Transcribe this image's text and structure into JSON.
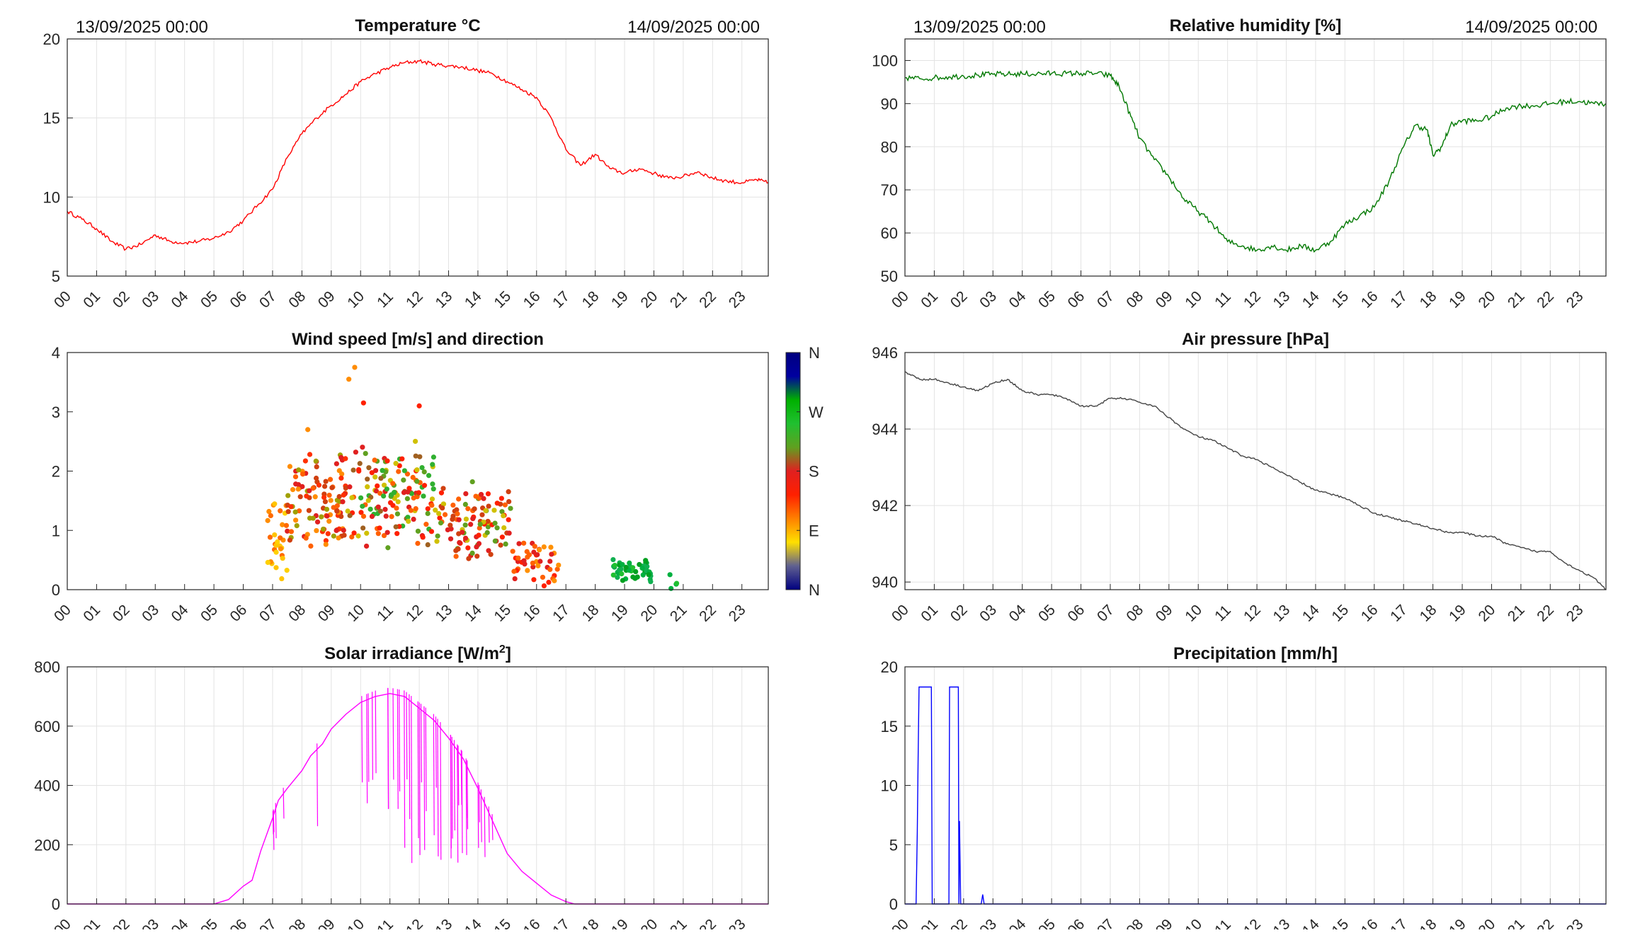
{
  "hour_labels": [
    "00",
    "01",
    "02",
    "03",
    "04",
    "05",
    "06",
    "07",
    "08",
    "09",
    "10",
    "11",
    "12",
    "13",
    "14",
    "15",
    "16",
    "17",
    "18",
    "19",
    "20",
    "21",
    "22",
    "23"
  ],
  "chart_data": [
    {
      "id": "temperature",
      "type": "line",
      "title": "Temperature °C",
      "date_start": "13/09/2025 00:00",
      "date_end": "14/09/2025 00:00",
      "xlim": [
        0,
        23.9
      ],
      "ylim": [
        5,
        20
      ],
      "yticks": [
        "5",
        "10",
        "15",
        "20"
      ],
      "ytick_values": [
        5,
        10,
        15,
        20
      ],
      "grid": true,
      "color": "#ff0000",
      "series": [
        {
          "x": [
            0,
            0.5,
            1,
            1.5,
            2,
            2.5,
            3,
            3.5,
            4,
            4.5,
            5,
            5.5,
            6,
            6.5,
            7,
            7.5,
            8,
            8.5,
            9,
            9.5,
            10,
            10.5,
            11,
            11.5,
            12,
            12.5,
            13,
            13.5,
            14,
            14.5,
            15,
            15.5,
            16,
            16.5,
            17,
            17.5,
            18,
            18.5,
            19,
            19.5,
            20,
            20.5,
            21,
            21.5,
            22,
            22.5,
            23,
            23.5,
            23.9
          ],
          "y": [
            9.1,
            8.6,
            8.0,
            7.2,
            6.7,
            7.0,
            7.6,
            7.2,
            7.1,
            7.2,
            7.4,
            7.8,
            8.5,
            9.5,
            10.5,
            12.5,
            14.0,
            15.0,
            15.8,
            16.5,
            17.3,
            17.8,
            18.2,
            18.5,
            18.6,
            18.4,
            18.3,
            18.2,
            18.0,
            17.8,
            17.3,
            16.8,
            16.3,
            15.0,
            13.0,
            12.0,
            12.7,
            11.8,
            11.5,
            11.8,
            11.5,
            11.2,
            11.3,
            11.6,
            11.2,
            11.0,
            10.9,
            11.1,
            10.9
          ]
        }
      ]
    },
    {
      "id": "humidity",
      "type": "line",
      "title": "Relative humidity [%]",
      "date_start": "13/09/2025 00:00",
      "date_end": "14/09/2025 00:00",
      "xlim": [
        0,
        23.9
      ],
      "ylim": [
        50,
        105
      ],
      "yticks": [
        "50",
        "60",
        "70",
        "80",
        "90",
        "100"
      ],
      "ytick_values": [
        50,
        60,
        70,
        80,
        90,
        100
      ],
      "grid": true,
      "color": "#007800",
      "series": [
        {
          "x": [
            0,
            0.5,
            1,
            1.5,
            2,
            2.5,
            3,
            3.5,
            4,
            4.5,
            5,
            5.5,
            6,
            6.5,
            7,
            7.3,
            7.7,
            8,
            8.5,
            9,
            9.5,
            10,
            10.5,
            11,
            11.5,
            12,
            12.5,
            13,
            13.5,
            14,
            14.5,
            15,
            15.5,
            16,
            16.5,
            17,
            17.4,
            17.8,
            18,
            18.3,
            18.6,
            19,
            19.5,
            20,
            20.5,
            21,
            21.5,
            22,
            22.5,
            23,
            23.5,
            23.9
          ],
          "y": [
            96,
            95.8,
            96,
            96.2,
            96.4,
            96.6,
            96.8,
            96.8,
            96.9,
            96.9,
            97,
            97,
            97,
            97,
            96.5,
            94,
            87,
            82,
            77,
            73,
            68,
            65,
            62,
            58,
            57,
            56,
            57,
            56,
            57,
            56,
            58,
            62,
            64,
            66,
            72,
            80,
            85,
            84,
            78,
            80,
            85,
            86,
            86,
            87,
            89,
            89.5,
            89.5,
            90,
            90.5,
            90.5,
            90,
            90
          ]
        }
      ]
    },
    {
      "id": "wind",
      "type": "scatter",
      "title": "Wind speed [m/s] and direction",
      "xlim": [
        0,
        23.9
      ],
      "ylim": [
        0,
        4
      ],
      "yticks": [
        "0",
        "1",
        "2",
        "3",
        "4"
      ],
      "ytick_values": [
        0,
        1,
        2,
        3,
        4
      ],
      "grid": false,
      "colorbar": {
        "labels": [
          "N",
          "W",
          "S",
          "E",
          "N"
        ],
        "stops": [
          "#00007f",
          "#0000a0",
          "#00b000",
          "#20c030",
          "#60a020",
          "#e02020",
          "#ff2000",
          "#ff8000",
          "#ffe000",
          "#606090",
          "#000080"
        ]
      },
      "clusters": [
        {
          "x_range": [
            6.8,
            7.5
          ],
          "center_y": 0.9,
          "spread": 0.55,
          "count": 30,
          "palette": [
            "#ff8c00",
            "#ffc400",
            "#ffd000",
            "#ff6a00"
          ]
        },
        {
          "x_range": [
            7.5,
            9.5
          ],
          "center_y": 1.5,
          "spread": 0.55,
          "count": 110,
          "palette": [
            "#ff3000",
            "#ff6000",
            "#e02020",
            "#ff8c00",
            "#d04010",
            "#a0a000"
          ]
        },
        {
          "x_range": [
            9.5,
            12.5
          ],
          "center_y": 1.6,
          "spread": 0.6,
          "count": 150,
          "palette": [
            "#ff2000",
            "#e02020",
            "#60a020",
            "#30b030",
            "#ff6000",
            "#d0c000",
            "#a06020"
          ]
        },
        {
          "x_range": [
            12.5,
            15.2
          ],
          "center_y": 1.15,
          "spread": 0.45,
          "count": 110,
          "palette": [
            "#ff2000",
            "#e02020",
            "#60a020",
            "#ff6000",
            "#d0c000",
            "#d04010"
          ]
        },
        {
          "x_range": [
            15.2,
            16.8
          ],
          "center_y": 0.45,
          "spread": 0.35,
          "count": 45,
          "palette": [
            "#ff2000",
            "#e02020",
            "#ff6000",
            "#ff9000"
          ]
        },
        {
          "x_range": [
            18.6,
            19.9
          ],
          "center_y": 0.3,
          "spread": 0.15,
          "count": 50,
          "palette": [
            "#00b040",
            "#20c030",
            "#00a020",
            "#10b050"
          ]
        },
        {
          "x_range": [
            20.5,
            20.8
          ],
          "center_y": 0.2,
          "spread": 0.15,
          "count": 4,
          "palette": [
            "#00b040",
            "#20c030"
          ]
        }
      ],
      "highlights": [
        {
          "x": 9.8,
          "y": 3.75,
          "color": "#ff8c00"
        },
        {
          "x": 9.6,
          "y": 3.55,
          "color": "#ff8c00"
        },
        {
          "x": 10.1,
          "y": 3.15,
          "color": "#ff2000"
        },
        {
          "x": 12.0,
          "y": 3.1,
          "color": "#ff2000"
        },
        {
          "x": 8.2,
          "y": 2.7,
          "color": "#ff8c00"
        }
      ]
    },
    {
      "id": "pressure",
      "type": "line",
      "title": "Air pressure [hPa]",
      "xlim": [
        0,
        23.9
      ],
      "ylim": [
        939.8,
        946
      ],
      "yticks": [
        "940",
        "942",
        "944",
        "946"
      ],
      "ytick_values": [
        940,
        942,
        944,
        946
      ],
      "grid": true,
      "color": "#444444",
      "series": [
        {
          "x": [
            0,
            0.5,
            1,
            1.5,
            2,
            2.5,
            3,
            3.5,
            4,
            4.5,
            5,
            5.5,
            6,
            6.5,
            7,
            7.5,
            8,
            8.5,
            9,
            9.5,
            10,
            10.5,
            11,
            11.5,
            12,
            12.5,
            13,
            13.5,
            14,
            14.5,
            15,
            15.5,
            16,
            16.5,
            17,
            17.5,
            18,
            18.5,
            19,
            19.5,
            20,
            20.5,
            21,
            21.5,
            22,
            22.5,
            23,
            23.5,
            23.9
          ],
          "y": [
            945.5,
            945.3,
            945.3,
            945.2,
            945.1,
            945.0,
            945.2,
            945.3,
            945.0,
            944.9,
            944.9,
            944.8,
            944.6,
            944.6,
            944.8,
            944.8,
            944.7,
            944.6,
            944.3,
            944.0,
            943.8,
            943.7,
            943.5,
            943.3,
            943.2,
            943.0,
            942.8,
            942.6,
            942.4,
            942.3,
            942.2,
            942.0,
            941.8,
            941.7,
            941.6,
            941.5,
            941.4,
            941.3,
            941.3,
            941.2,
            941.2,
            941.0,
            940.9,
            940.8,
            940.8,
            940.5,
            940.3,
            940.1,
            939.8
          ]
        }
      ]
    },
    {
      "id": "solar",
      "type": "line",
      "title": "Solar irradiance [W/m²]",
      "xlim": [
        0,
        23.9
      ],
      "ylim": [
        0,
        800
      ],
      "yticks": [
        "0",
        "200",
        "400",
        "600",
        "800"
      ],
      "ytick_values": [
        0,
        200,
        400,
        600,
        800
      ],
      "grid": true,
      "color": "#ff00ff",
      "series": [
        {
          "x": [
            0,
            5.0,
            5.5,
            6.0,
            6.3,
            6.6,
            7.0,
            7.2,
            7.5,
            8.0,
            8.3,
            8.7,
            9.0,
            9.5,
            10.0,
            10.5,
            11.0,
            11.5,
            12.0,
            12.5,
            13.0,
            13.5,
            14.0,
            14.5,
            15.0,
            15.5,
            16.0,
            16.5,
            17.0,
            17.3,
            23.9
          ],
          "y": [
            0,
            0,
            15,
            60,
            80,
            180,
            290,
            350,
            390,
            450,
            500,
            540,
            590,
            640,
            680,
            700,
            710,
            700,
            660,
            620,
            560,
            490,
            390,
            280,
            170,
            110,
            70,
            30,
            8,
            0,
            0
          ]
        }
      ],
      "spike_ranges": [
        {
          "x_range": [
            10.0,
            14.5
          ],
          "min_y": 120,
          "count": 40
        },
        {
          "x_range": [
            7.0,
            8.8
          ],
          "min_y": 180,
          "count": 6
        }
      ]
    },
    {
      "id": "precip",
      "type": "line",
      "title": "Precipitation [mm/h]",
      "xlim": [
        0,
        23.9
      ],
      "ylim": [
        0,
        20
      ],
      "yticks": [
        "0",
        "5",
        "10",
        "15",
        "20"
      ],
      "ytick_values": [
        0,
        5,
        10,
        15,
        20
      ],
      "grid": true,
      "color": "#0000ff",
      "series": [
        {
          "x": [
            0,
            0.38,
            0.42,
            0.45,
            0.48,
            0.9,
            0.93,
            0.96,
            1.5,
            1.52,
            1.55,
            1.82,
            1.84,
            1.86,
            1.9,
            1.93,
            2.0,
            2.6,
            2.65,
            2.7,
            23.9
          ],
          "y": [
            0,
            0,
            6,
            12.3,
            18.3,
            18.3,
            0,
            0,
            0,
            18.3,
            18.3,
            18.3,
            0,
            7,
            0,
            0,
            0,
            0,
            0.8,
            0,
            0
          ]
        }
      ]
    }
  ]
}
